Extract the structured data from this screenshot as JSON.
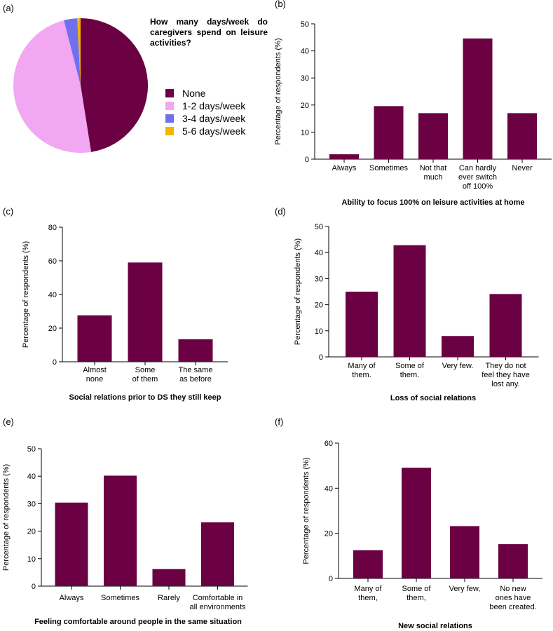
{
  "colors": {
    "bar": "#6b0042",
    "pie": [
      "#6b0042",
      "#f2a7f2",
      "#7070ee",
      "#f5b400"
    ]
  },
  "chart_data": [
    {
      "id": "a",
      "type": "pie",
      "panel_label": "(a)",
      "title": "How many days/week do caregivers spend on leisure activities?",
      "categories": [
        "None",
        "1-2 days/week",
        "3-4 days/week",
        "5-6 days/week"
      ],
      "values": [
        47.5,
        48.5,
        3.2,
        0.8
      ]
    },
    {
      "id": "b",
      "type": "bar",
      "panel_label": "(b)",
      "title": "Ability to focus 100% on leisure activities at home",
      "ylabel": "Percentage of respondents (%)",
      "ylim": [
        0,
        50
      ],
      "yticks": [
        0,
        10,
        20,
        30,
        40,
        50
      ],
      "categories": [
        [
          "Always"
        ],
        [
          "Sometimes"
        ],
        [
          "Not that",
          "much"
        ],
        [
          "Can hardly",
          "ever switch",
          "off 100%"
        ],
        [
          "Never"
        ]
      ],
      "values": [
        1.8,
        19.6,
        17.0,
        44.6,
        17.0
      ]
    },
    {
      "id": "c",
      "type": "bar",
      "panel_label": "(c)",
      "title": "Social relations prior to DS they still keep",
      "ylabel": "Percentage of respondents (%)",
      "ylim": [
        0,
        80
      ],
      "yticks": [
        0,
        20,
        40,
        60,
        80
      ],
      "categories": [
        [
          "Almost",
          "none"
        ],
        [
          "Some",
          "of them"
        ],
        [
          "The same",
          "as before"
        ]
      ],
      "values": [
        27.6,
        59.0,
        13.4
      ]
    },
    {
      "id": "d",
      "type": "bar",
      "panel_label": "(d)",
      "title": "Loss of social relations",
      "ylabel": "Percentage of respondents (%)",
      "ylim": [
        0,
        50
      ],
      "yticks": [
        0,
        10,
        20,
        30,
        40,
        50
      ],
      "categories": [
        [
          "Many of",
          "them."
        ],
        [
          "Some of",
          "them."
        ],
        [
          "Very few."
        ],
        [
          "They do not",
          "feel they have",
          "lost any."
        ]
      ],
      "values": [
        25.0,
        42.8,
        8.0,
        24.1
      ]
    },
    {
      "id": "e",
      "type": "bar",
      "panel_label": "(e)",
      "title": "Feeling comfortable around people in the same situation",
      "ylabel": "Percentage of respondents (%)",
      "ylim": [
        0,
        50
      ],
      "yticks": [
        0,
        10,
        20,
        30,
        40,
        50
      ],
      "categories": [
        [
          "Always"
        ],
        [
          "Sometimes"
        ],
        [
          "Rarely"
        ],
        [
          "Comfortable in",
          "all environments"
        ]
      ],
      "values": [
        30.4,
        40.2,
        6.2,
        23.2
      ]
    },
    {
      "id": "f",
      "type": "bar",
      "panel_label": "(f)",
      "title": "New social relations",
      "ylabel": "Percentage of respondents (%)",
      "ylim": [
        0,
        60
      ],
      "yticks": [
        0,
        20,
        40,
        60
      ],
      "categories": [
        [
          "Many of",
          "them,"
        ],
        [
          "Some of",
          "them,"
        ],
        [
          "Very few,"
        ],
        [
          "No new",
          "ones have",
          "been created."
        ]
      ],
      "values": [
        12.5,
        49.1,
        23.2,
        15.2
      ]
    }
  ]
}
